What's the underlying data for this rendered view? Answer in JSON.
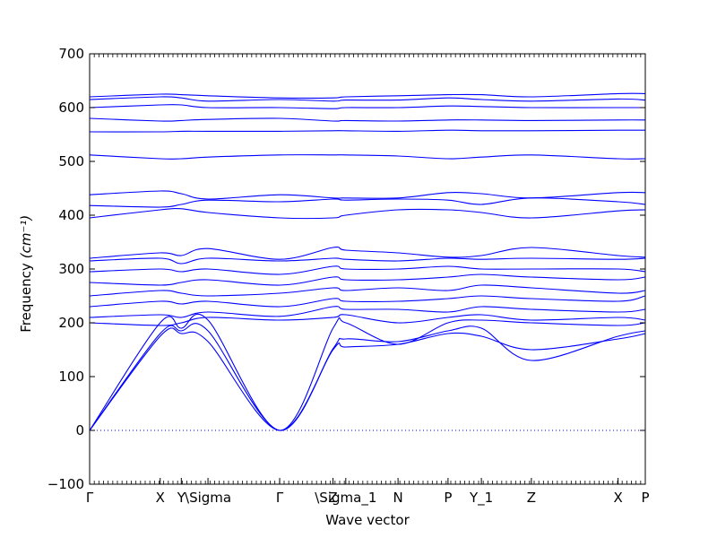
{
  "chart_data": {
    "type": "line",
    "xlabel": "Wave vector",
    "ylabel": "Frequency",
    "ylabel_unit": "(cm⁻¹)",
    "ylim": [
      -100,
      700
    ],
    "yticks": [
      "−100",
      "0",
      "100",
      "200",
      "300",
      "400",
      "500",
      "600",
      "700"
    ],
    "xlim": [
      0,
      1
    ],
    "high_symmetry_labels": [
      {
        "label": "Γ",
        "x": 0.0
      },
      {
        "label": "X",
        "x": 0.127
      },
      {
        "label": "Y",
        "x": 0.165
      },
      {
        "label": "\\Sigma",
        "x": 0.213
      },
      {
        "label": "Γ",
        "x": 0.342
      },
      {
        "label": "Z",
        "x": 0.438
      },
      {
        "label": "\\Sigma_1",
        "x": 0.461
      },
      {
        "label": "N",
        "x": 0.555
      },
      {
        "label": "P",
        "x": 0.645
      },
      {
        "label": "Y_1",
        "x": 0.705
      },
      {
        "label": "Z",
        "x": 0.795
      },
      {
        "label": "X",
        "x": 0.951
      },
      {
        "label": "P",
        "x": 1.0
      }
    ],
    "zero_line": 0,
    "line_color": "#0000ff",
    "series_note": "phonon dispersion branches",
    "branches": [
      {
        "x": [
          0,
          0.127,
          0.165,
          0.213,
          0.342,
          0.438,
          0.461,
          0.555,
          0.645,
          0.705,
          0.795,
          0.951,
          1.0
        ],
        "y": [
          0,
          175,
          180,
          165,
          0,
          150,
          155,
          160,
          180,
          175,
          150,
          170,
          180
        ]
      },
      {
        "x": [
          0,
          0.127,
          0.165,
          0.213,
          0.342,
          0.438,
          0.461,
          0.555,
          0.645,
          0.705,
          0.795,
          0.951,
          1.0
        ],
        "y": [
          0,
          180,
          185,
          185,
          0,
          152,
          170,
          165,
          185,
          190,
          130,
          175,
          185
        ]
      },
      {
        "x": [
          0,
          0.127,
          0.165,
          0.213,
          0.342,
          0.438,
          0.461,
          0.555,
          0.645,
          0.705,
          0.795,
          0.951,
          1.0
        ],
        "y": [
          0,
          200,
          190,
          205,
          0,
          190,
          200,
          160,
          200,
          205,
          200,
          195,
          200
        ]
      },
      {
        "x": [
          0,
          0.127,
          0.165,
          0.213,
          0.342,
          0.438,
          0.461,
          0.555,
          0.645,
          0.705,
          0.795,
          0.951,
          1.0
        ],
        "y": [
          200,
          195,
          200,
          210,
          205,
          210,
          215,
          200,
          210,
          215,
          205,
          210,
          205
        ]
      },
      {
        "x": [
          0,
          0.127,
          0.165,
          0.213,
          0.342,
          0.438,
          0.461,
          0.555,
          0.645,
          0.705,
          0.795,
          0.951,
          1.0
        ],
        "y": [
          210,
          215,
          210,
          220,
          212,
          230,
          225,
          225,
          220,
          230,
          225,
          220,
          225
        ]
      },
      {
        "x": [
          0,
          0.127,
          0.165,
          0.213,
          0.342,
          0.438,
          0.461,
          0.555,
          0.645,
          0.705,
          0.795,
          0.951,
          1.0
        ],
        "y": [
          230,
          240,
          235,
          240,
          230,
          245,
          240,
          240,
          245,
          250,
          245,
          240,
          250
        ]
      },
      {
        "x": [
          0,
          0.127,
          0.165,
          0.213,
          0.342,
          0.438,
          0.461,
          0.555,
          0.645,
          0.705,
          0.795,
          0.951,
          1.0
        ],
        "y": [
          250,
          260,
          255,
          250,
          255,
          265,
          260,
          265,
          260,
          270,
          265,
          255,
          260
        ]
      },
      {
        "x": [
          0,
          0.127,
          0.165,
          0.213,
          0.342,
          0.438,
          0.461,
          0.555,
          0.645,
          0.705,
          0.795,
          0.951,
          1.0
        ],
        "y": [
          275,
          270,
          275,
          280,
          270,
          285,
          280,
          280,
          285,
          290,
          285,
          280,
          285
        ]
      },
      {
        "x": [
          0,
          0.127,
          0.165,
          0.213,
          0.342,
          0.438,
          0.461,
          0.555,
          0.645,
          0.705,
          0.795,
          0.951,
          1.0
        ],
        "y": [
          295,
          300,
          295,
          300,
          290,
          305,
          300,
          300,
          305,
          300,
          300,
          300,
          295
        ]
      },
      {
        "x": [
          0,
          0.127,
          0.165,
          0.213,
          0.342,
          0.438,
          0.461,
          0.555,
          0.645,
          0.705,
          0.795,
          0.951,
          1.0
        ],
        "y": [
          315,
          320,
          310,
          320,
          315,
          320,
          318,
          315,
          320,
          318,
          320,
          318,
          320
        ]
      },
      {
        "x": [
          0,
          0.127,
          0.165,
          0.213,
          0.342,
          0.438,
          0.461,
          0.555,
          0.645,
          0.705,
          0.795,
          0.951,
          1.0
        ],
        "y": [
          320,
          330,
          325,
          338,
          318,
          340,
          335,
          330,
          322,
          325,
          340,
          325,
          322
        ]
      },
      {
        "x": [
          0,
          0.127,
          0.165,
          0.213,
          0.342,
          0.438,
          0.461,
          0.555,
          0.645,
          0.705,
          0.795,
          0.951,
          1.0
        ],
        "y": [
          395,
          410,
          412,
          405,
          395,
          395,
          400,
          410,
          410,
          405,
          395,
          408,
          410
        ]
      },
      {
        "x": [
          0,
          0.127,
          0.165,
          0.213,
          0.342,
          0.438,
          0.461,
          0.555,
          0.645,
          0.705,
          0.795,
          0.951,
          1.0
        ],
        "y": [
          418,
          415,
          420,
          428,
          425,
          430,
          428,
          430,
          428,
          420,
          432,
          425,
          420
        ]
      },
      {
        "x": [
          0,
          0.127,
          0.165,
          0.213,
          0.342,
          0.438,
          0.461,
          0.555,
          0.645,
          0.705,
          0.795,
          0.951,
          1.0
        ],
        "y": [
          438,
          445,
          440,
          430,
          438,
          432,
          432,
          432,
          442,
          440,
          432,
          442,
          442
        ]
      },
      {
        "x": [
          0,
          0.127,
          0.165,
          0.213,
          0.342,
          0.438,
          0.461,
          0.555,
          0.645,
          0.705,
          0.795,
          0.951,
          1.0
        ],
        "y": [
          512,
          505,
          505,
          508,
          512,
          512,
          512,
          510,
          505,
          508,
          512,
          505,
          505
        ]
      },
      {
        "x": [
          0,
          0.127,
          0.165,
          0.213,
          0.342,
          0.438,
          0.461,
          0.555,
          0.645,
          0.705,
          0.795,
          0.951,
          1.0
        ],
        "y": [
          555,
          555,
          556,
          556,
          556,
          557,
          557,
          556,
          558,
          557,
          557,
          558,
          558
        ]
      },
      {
        "x": [
          0,
          0.127,
          0.165,
          0.213,
          0.342,
          0.438,
          0.461,
          0.555,
          0.645,
          0.705,
          0.795,
          0.951,
          1.0
        ],
        "y": [
          580,
          575,
          576,
          578,
          580,
          575,
          576,
          575,
          577,
          577,
          576,
          577,
          577
        ]
      },
      {
        "x": [
          0,
          0.127,
          0.165,
          0.213,
          0.342,
          0.438,
          0.461,
          0.555,
          0.645,
          0.705,
          0.795,
          0.951,
          1.0
        ],
        "y": [
          600,
          605,
          605,
          600,
          600,
          598,
          600,
          600,
          603,
          602,
          600,
          600,
          600
        ]
      },
      {
        "x": [
          0,
          0.127,
          0.165,
          0.213,
          0.342,
          0.438,
          0.461,
          0.555,
          0.645,
          0.705,
          0.795,
          0.951,
          1.0
        ],
        "y": [
          615,
          620,
          618,
          612,
          615,
          612,
          614,
          614,
          618,
          615,
          612,
          616,
          614
        ]
      },
      {
        "x": [
          0,
          0.127,
          0.165,
          0.213,
          0.342,
          0.438,
          0.461,
          0.555,
          0.645,
          0.705,
          0.795,
          0.951,
          1.0
        ],
        "y": [
          620,
          625,
          624,
          622,
          618,
          618,
          620,
          622,
          624,
          624,
          620,
          626,
          626
        ]
      }
    ]
  }
}
